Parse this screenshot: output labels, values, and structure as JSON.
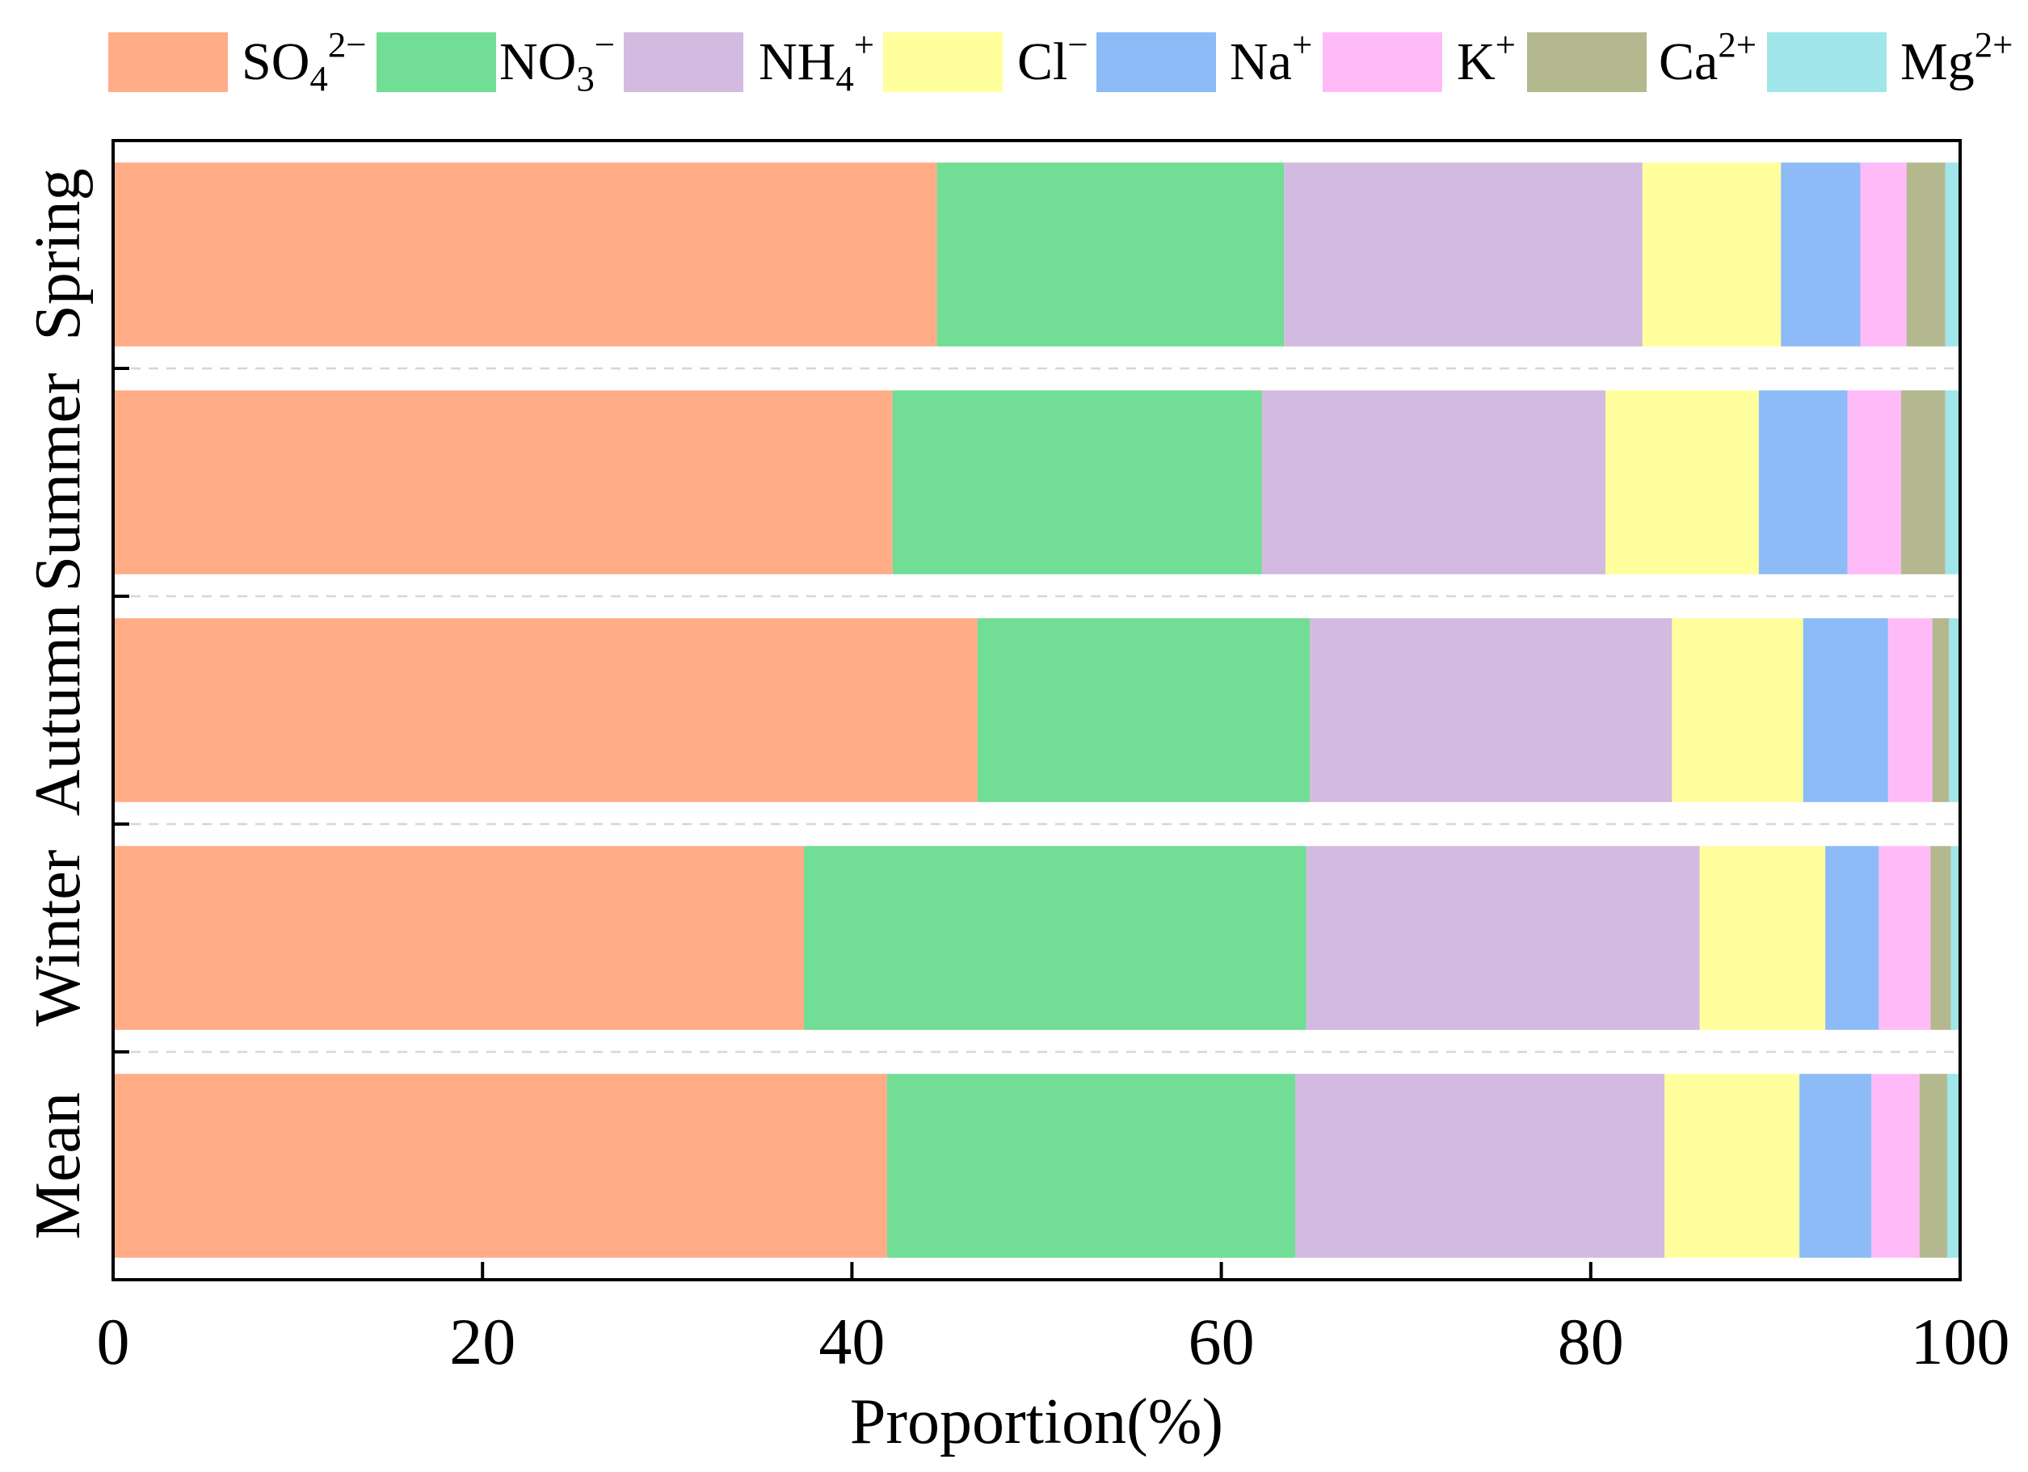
{
  "chart_data": {
    "type": "bar",
    "orientation": "horizontal",
    "stacked": true,
    "title": "",
    "xlabel": "Proportion(%)",
    "ylabel": "",
    "xlim": [
      0,
      100
    ],
    "xticks": [
      0,
      20,
      40,
      60,
      80,
      100
    ],
    "grid": true,
    "legend_position": "top",
    "categories": [
      "Spring",
      "Summer",
      "Autumn",
      "Winter",
      "Mean"
    ],
    "series": [
      {
        "name": {
          "base": "SO",
          "sub": "4",
          "sup": "2−"
        },
        "color": "#FFAC87",
        "values": [
          44.6,
          42.2,
          46.8,
          37.4,
          41.9
        ]
      },
      {
        "name": {
          "base": "NO",
          "sub": "3",
          "sup": "−"
        },
        "color": "#72DD95",
        "values": [
          18.8,
          20.0,
          18.0,
          27.2,
          22.1
        ]
      },
      {
        "name": {
          "base": "NH",
          "sub": "4",
          "sup": "+"
        },
        "color": "#D3BAE0",
        "values": [
          19.4,
          18.6,
          19.6,
          21.3,
          20.0
        ]
      },
      {
        "name": {
          "base": "Cl",
          "sup": "−"
        },
        "color": "#FFFF9E",
        "values": [
          7.5,
          8.3,
          7.1,
          6.8,
          7.3
        ]
      },
      {
        "name": {
          "base": "Na",
          "sup": "+"
        },
        "color": "#8DBBF7",
        "values": [
          4.3,
          4.8,
          4.6,
          2.9,
          3.9
        ]
      },
      {
        "name": {
          "base": "K",
          "sup": "+"
        },
        "color": "#FFBBF8",
        "values": [
          2.5,
          2.9,
          2.4,
          2.8,
          2.6
        ]
      },
      {
        "name": {
          "base": "Ca",
          "sup": "2+"
        },
        "color": "#B4B88E",
        "values": [
          2.1,
          2.4,
          0.9,
          1.1,
          1.5
        ]
      },
      {
        "name": {
          "base": "Mg",
          "sup": "2+"
        },
        "color": "#A0E6EA",
        "values": [
          0.8,
          0.8,
          0.6,
          0.5,
          0.7
        ]
      }
    ]
  }
}
